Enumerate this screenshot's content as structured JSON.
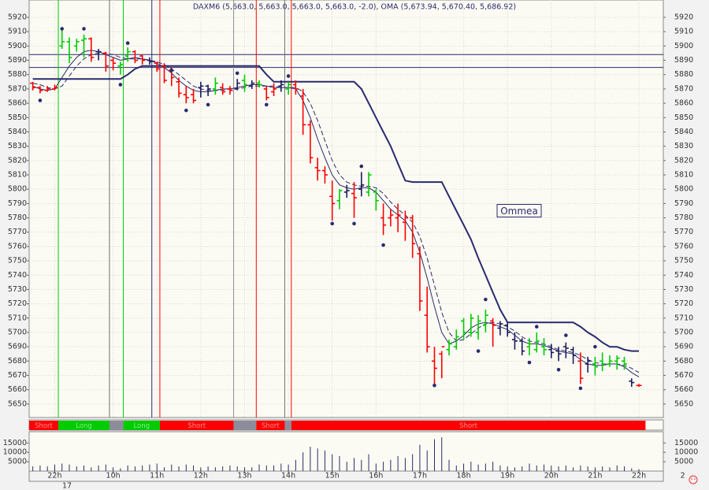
{
  "chart_data": {
    "type": "ohlc",
    "title": "DAXM6 (5,663.0, 5,663.0, 5,663.0, 5,663.0, -2.0), OMA (5,673.94, 5,670.40, 5,686.92)",
    "categories": [
      null,
      null,
      null,
      "22h",
      null,
      null,
      null,
      null,
      null,
      null,
      null,
      "10h",
      null,
      null,
      null,
      null,
      null,
      "11h",
      null,
      null,
      null,
      null,
      null,
      "12h",
      null,
      null,
      null,
      null,
      null,
      "13h",
      null,
      null,
      null,
      null,
      null,
      "14h",
      null,
      null,
      null,
      null,
      null,
      "15h",
      null,
      null,
      null,
      null,
      null,
      "16h",
      null,
      null,
      null,
      null,
      null,
      "17h",
      null,
      null,
      null,
      null,
      null,
      "18h",
      null,
      null,
      null,
      null,
      null,
      "19h",
      null,
      null,
      null,
      null,
      null,
      "20h",
      null,
      null,
      null,
      null,
      null,
      "21h",
      null,
      null,
      null,
      null,
      null,
      "22h",
      null,
      null,
      null,
      null,
      null,
      "2"
    ],
    "date_label": "17",
    "ohlc": [
      [
        5874,
        5875,
        5869,
        5871
      ],
      [
        5871,
        5872,
        5867,
        5869
      ],
      [
        5869,
        5872,
        5868,
        5870
      ],
      [
        5870,
        5873,
        5869,
        5871
      ],
      [
        5900,
        5912,
        5898,
        5903
      ],
      [
        5903,
        5906,
        5888,
        5892
      ],
      [
        5900,
        5905,
        5896,
        5903
      ],
      [
        5904,
        5908,
        5892,
        5905
      ],
      [
        5905,
        5906,
        5889,
        5892
      ],
      [
        5896,
        5898,
        5890,
        5896
      ],
      [
        5895,
        5896,
        5882,
        5886
      ],
      [
        5890,
        5892,
        5883,
        5888
      ],
      [
        5886,
        5889,
        5880,
        5887
      ],
      [
        5893,
        5899,
        5889,
        5896
      ],
      [
        5896,
        5897,
        5888,
        5890
      ],
      [
        5893,
        5894,
        5887,
        5890
      ],
      [
        5890,
        5892,
        5887,
        5889
      ],
      [
        5888,
        5889,
        5882,
        5884
      ],
      [
        5886,
        5888,
        5874,
        5876
      ],
      [
        5883,
        5885,
        5872,
        5878
      ],
      [
        5875,
        5878,
        5864,
        5867
      ],
      [
        5866,
        5872,
        5860,
        5864
      ],
      [
        5866,
        5870,
        5860,
        5862
      ],
      [
        5871,
        5875,
        5864,
        5872
      ],
      [
        5872,
        5873,
        5865,
        5870
      ],
      [
        5870,
        5878,
        5866,
        5874
      ],
      [
        5871,
        5874,
        5866,
        5868
      ],
      [
        5870,
        5872,
        5866,
        5869
      ],
      [
        5870,
        5877,
        5869,
        5874
      ],
      [
        5876,
        5880,
        5868,
        5873
      ],
      [
        5872,
        5876,
        5870,
        5874
      ],
      [
        5874,
        5876,
        5871,
        5873
      ],
      [
        5870,
        5872,
        5862,
        5864
      ],
      [
        5868,
        5874,
        5865,
        5870
      ],
      [
        5872,
        5876,
        5868,
        5873
      ],
      [
        5870,
        5875,
        5866,
        5873
      ],
      [
        5873,
        5876,
        5866,
        5870
      ],
      [
        5865,
        5870,
        5838,
        5845
      ],
      [
        5845,
        5848,
        5818,
        5822
      ],
      [
        5815,
        5822,
        5806,
        5813
      ],
      [
        5813,
        5816,
        5804,
        5810
      ],
      [
        5795,
        5806,
        5778,
        5790
      ],
      [
        5792,
        5800,
        5786,
        5799
      ],
      [
        5798,
        5803,
        5794,
        5799
      ],
      [
        5797,
        5805,
        5780,
        5794
      ],
      [
        5800,
        5812,
        5795,
        5803
      ],
      [
        5798,
        5812,
        5795,
        5810
      ],
      [
        5798,
        5800,
        5785,
        5792
      ],
      [
        5780,
        5790,
        5768,
        5775
      ],
      [
        5780,
        5786,
        5774,
        5782
      ],
      [
        5780,
        5790,
        5770,
        5782
      ],
      [
        5777,
        5785,
        5764,
        5780
      ],
      [
        5780,
        5782,
        5752,
        5762
      ],
      [
        5755,
        5760,
        5715,
        5722
      ],
      [
        5712,
        5732,
        5686,
        5690
      ],
      [
        5680,
        5690,
        5664,
        5675
      ],
      [
        5685,
        5687,
        5668,
        5690
      ],
      [
        5688,
        5695,
        5684,
        5692
      ],
      [
        5690,
        5702,
        5688,
        5697
      ],
      [
        5708,
        5710,
        5695,
        5700
      ],
      [
        5700,
        5713,
        5697,
        5710
      ],
      [
        5700,
        5712,
        5695,
        5708
      ],
      [
        5705,
        5716,
        5700,
        5712
      ],
      [
        5708,
        5710,
        5690,
        5705
      ],
      [
        5703,
        5708,
        5698,
        5706
      ],
      [
        5705,
        5707,
        5697,
        5700
      ],
      [
        5695,
        5700,
        5688,
        5694
      ],
      [
        5694,
        5696,
        5684,
        5687
      ],
      [
        5690,
        5696,
        5684,
        5692
      ],
      [
        5688,
        5700,
        5686,
        5694
      ],
      [
        5690,
        5696,
        5684,
        5688
      ],
      [
        5688,
        5692,
        5682,
        5686
      ],
      [
        5687,
        5690,
        5680,
        5685
      ],
      [
        5690,
        5693,
        5682,
        5689
      ],
      [
        5688,
        5690,
        5678,
        5684
      ],
      [
        5680,
        5686,
        5664,
        5668
      ],
      [
        5678,
        5683,
        5672,
        5680
      ],
      [
        5678,
        5683,
        5670,
        5676
      ],
      [
        5680,
        5686,
        5673,
        5678
      ],
      [
        5678,
        5684,
        5676,
        5680
      ],
      [
        5680,
        5684,
        5674,
        5682
      ],
      [
        5680,
        5683,
        5674,
        5678
      ],
      [
        5666,
        5668,
        5662,
        5665
      ],
      [
        5663,
        5664,
        5662,
        5663
      ],
      null,
      null,
      null,
      null,
      null,
      null
    ],
    "bar_states": "rrrrggggrbrrggrrbrrrrrrbbgrrbgbgrrbgrrrrrrgbrbggrrrrrrrrrggggggrbbbbgggbbbbrbgggggbrr",
    "state_colors": {
      "r": "#ff0000",
      "g": "#00cc00",
      "b": "#1c1c5e"
    },
    "lines": [
      {
        "color": "#2a2a6e",
        "width": 1,
        "dash": false,
        "values": [
          5872,
          5870,
          5869,
          5870,
          5878,
          5886,
          5892,
          5896,
          5897,
          5896,
          5894,
          5892,
          5890,
          5891,
          5892,
          5891,
          5890,
          5888,
          5885,
          5881,
          5876,
          5872,
          5869,
          5868,
          5868,
          5869,
          5870,
          5870,
          5871,
          5872,
          5873,
          5873,
          5872,
          5871,
          5871,
          5871,
          5870,
          5862,
          5850,
          5835,
          5822,
          5810,
          5803,
          5801,
          5800,
          5801,
          5801,
          5798,
          5792,
          5786,
          5782,
          5778,
          5770,
          5756,
          5738,
          5718,
          5700,
          5692,
          5694,
          5698,
          5703,
          5706,
          5707,
          5706,
          5704,
          5702,
          5698,
          5694,
          5692,
          5692,
          5691,
          5689,
          5687,
          5686,
          5685,
          5681,
          5678,
          5677,
          5677,
          5678,
          5678,
          5676,
          5672,
          5669,
          null,
          null,
          null,
          null,
          null,
          null
        ]
      },
      {
        "color": "#2a2a6e",
        "width": 1,
        "dash": true,
        "values": [
          5874,
          5873,
          5871,
          5870,
          5872,
          5879,
          5886,
          5891,
          5894,
          5895,
          5895,
          5894,
          5892,
          5891,
          5891,
          5891,
          5890,
          5889,
          5887,
          5884,
          5880,
          5876,
          5872,
          5870,
          5869,
          5869,
          5869,
          5870,
          5870,
          5871,
          5872,
          5872,
          5872,
          5872,
          5871,
          5871,
          5871,
          5868,
          5860,
          5848,
          5834,
          5820,
          5810,
          5805,
          5803,
          5802,
          5802,
          5801,
          5797,
          5791,
          5786,
          5782,
          5777,
          5767,
          5752,
          5733,
          5714,
          5700,
          5694,
          5695,
          5699,
          5703,
          5706,
          5707,
          5706,
          5704,
          5701,
          5697,
          5694,
          5693,
          5692,
          5690,
          5688,
          5687,
          5686,
          5684,
          5681,
          5679,
          5678,
          5678,
          5678,
          5677,
          5675,
          5672,
          null,
          null,
          null,
          null,
          null,
          null
        ]
      },
      {
        "color": "#2a2a6e",
        "width": 2,
        "dash": false,
        "values": [
          5877,
          5877,
          5877,
          5877,
          5877,
          5877,
          5877,
          5877,
          5877,
          5877,
          5877,
          5877,
          5877,
          5880,
          5884,
          5886,
          5886,
          5886,
          5886,
          5886,
          5886,
          5886,
          5886,
          5886,
          5886,
          5886,
          5886,
          5886,
          5886,
          5886,
          5886,
          5886,
          5880,
          5875,
          5875,
          5875,
          5875,
          5875,
          5875,
          5875,
          5875,
          5875,
          5875,
          5875,
          5875,
          5870,
          5860,
          5850,
          5840,
          5830,
          5818,
          5806,
          5805,
          5805,
          5805,
          5805,
          5805,
          5795,
          5785,
          5775,
          5765,
          5752,
          5740,
          5728,
          5716,
          5707,
          5707,
          5707,
          5707,
          5707,
          5707,
          5707,
          5707,
          5707,
          5707,
          5704,
          5700,
          5697,
          5693,
          5690,
          5690,
          5688,
          5687,
          5687,
          null,
          null,
          null,
          null,
          null,
          null
        ]
      }
    ],
    "levels": [
      5894,
      5885
    ],
    "level_color": "#2a2a6e",
    "dots": {
      "color": "#2a2a6e",
      "x": [
        1,
        4,
        7,
        12,
        13,
        19,
        21,
        24,
        28,
        32,
        35,
        41,
        44,
        45,
        48,
        55,
        61,
        62,
        68,
        69,
        72,
        73,
        75,
        77
      ],
      "values": [
        5862,
        5912,
        5912,
        5873,
        5902,
        5883,
        5855,
        5859,
        5881,
        5859,
        5879,
        5776,
        5776,
        5816,
        5761,
        5663,
        5687,
        5723,
        5679,
        5704,
        5674,
        5698,
        5661,
        5690
      ]
    },
    "signals": [
      {
        "x": 3.49,
        "color": "#00cc00"
      },
      {
        "x": 10.5,
        "color": "#707070"
      },
      {
        "x": 12.4,
        "color": "#00cc00"
      },
      {
        "x": 16.3,
        "color": "#2a2a6e"
      },
      {
        "x": 17.4,
        "color": "#ff0000"
      },
      {
        "x": 27.5,
        "color": "#909090"
      },
      {
        "x": 30.6,
        "color": "#ff0000"
      },
      {
        "x": 34.5,
        "color": "#707070"
      },
      {
        "x": 35.4,
        "color": "#ff0000"
      }
    ],
    "regimes": [
      {
        "start": -0.5,
        "end": 3.49,
        "label": "Short",
        "color": "#ff0000"
      },
      {
        "start": 3.49,
        "end": 10.5,
        "label": "Long",
        "color": "#00cc00"
      },
      {
        "start": 10.5,
        "end": 12.4,
        "color": "#8c8c9c"
      },
      {
        "start": 12.4,
        "end": 17.4,
        "label": "Long",
        "color": "#00cc00"
      },
      {
        "start": 17.4,
        "end": 27.5,
        "label": "Short",
        "color": "#ff0000"
      },
      {
        "start": 27.5,
        "end": 30.6,
        "color": "#8c8c9c"
      },
      {
        "start": 30.6,
        "end": 34.5,
        "label": "Short",
        "color": "#ff0000"
      },
      {
        "start": 34.5,
        "end": 35.4,
        "color": "#8c8c9c"
      },
      {
        "start": 35.4,
        "end": 83.9,
        "label": "Short",
        "color": "#ff0000"
      }
    ],
    "annotation": {
      "text": "Ommea",
      "x": 66.6,
      "y": 5785
    },
    "ylim": [
      5640.6,
      5932.1
    ],
    "yticks": [
      5650,
      5660,
      5670,
      5680,
      5690,
      5700,
      5710,
      5720,
      5730,
      5740,
      5750,
      5760,
      5770,
      5780,
      5790,
      5800,
      5810,
      5820,
      5830,
      5840,
      5850,
      5860,
      5870,
      5880,
      5890,
      5900,
      5910,
      5920
    ],
    "grid": true,
    "volume": {
      "color": "#2a2a6e",
      "ylim": [
        0,
        21000
      ],
      "yticks": [
        5000,
        10000,
        15000
      ],
      "values": [
        2500,
        3000,
        2500,
        3500,
        4000,
        3500,
        2500,
        3000,
        2000,
        3000,
        3500,
        2000,
        1500,
        3000,
        2500,
        3000,
        3500,
        4000,
        2000,
        3500,
        2500,
        3500,
        3000,
        2000,
        2500,
        2000,
        2500,
        3000,
        2500,
        2000,
        2000,
        3500,
        3000,
        3000,
        4000,
        3500,
        6000,
        10000,
        13000,
        12000,
        11000,
        9000,
        8000,
        5000,
        7000,
        6000,
        9000,
        4000,
        5000,
        6000,
        8000,
        7000,
        9000,
        14000,
        11000,
        17000,
        18000,
        6000,
        3000,
        4000,
        5000,
        3500,
        4000,
        5000,
        3000,
        2500,
        2000,
        2500,
        4000,
        3000,
        3500,
        3000,
        2500,
        3000,
        2000,
        3000,
        2500,
        2000,
        2500,
        2000,
        3000,
        2500,
        1500,
        1000,
        null,
        null,
        null,
        null,
        null,
        null
      ]
    }
  }
}
